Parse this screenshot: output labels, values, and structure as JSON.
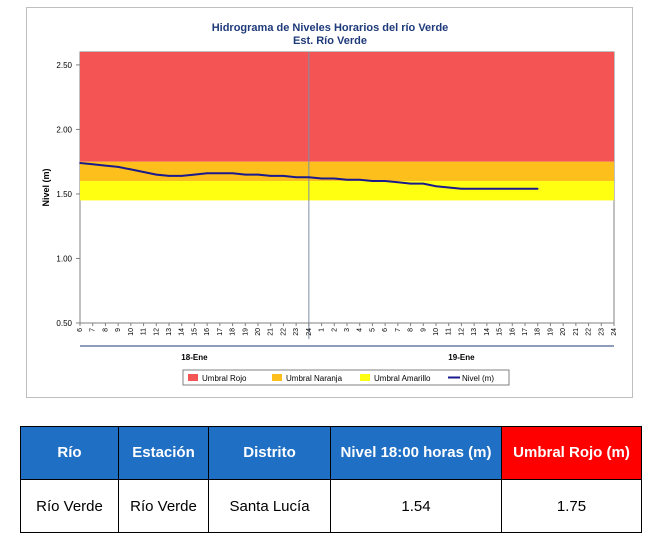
{
  "chart_data": {
    "type": "line",
    "title": "Hidrograma de Niveles Horarios del río Verde",
    "subtitle": "Est. Río Verde",
    "ylabel": "Nivel (m)",
    "xlabel": "",
    "ylim": [
      0.5,
      2.6
    ],
    "yticks": [
      "2.50",
      "2.00",
      "1.50",
      "1.00",
      "0.50"
    ],
    "ytick_values": [
      2.5,
      2.0,
      1.5,
      1.0,
      0.5
    ],
    "x_hour_labels": [
      "6",
      "7",
      "8",
      "9",
      "10",
      "11",
      "12",
      "13",
      "14",
      "15",
      "16",
      "17",
      "18",
      "19",
      "20",
      "21",
      "22",
      "23",
      "24",
      "1",
      "2",
      "3",
      "4",
      "5",
      "6",
      "7",
      "8",
      "9",
      "10",
      "11",
      "12",
      "13",
      "14",
      "15",
      "16",
      "17",
      "18",
      "19",
      "20",
      "21",
      "22",
      "23",
      "24"
    ],
    "day_labels": [
      "18-Ene",
      "19-Ene"
    ],
    "bands": [
      {
        "name": "Umbral Rojo",
        "from": 1.75,
        "to": 2.6,
        "color": "#f45454"
      },
      {
        "name": "Umbral Naranja",
        "from": 1.6,
        "to": 1.75,
        "color": "#fdbf1c"
      },
      {
        "name": "Umbral Amarillo",
        "from": 1.45,
        "to": 1.6,
        "color": "#ffff12"
      }
    ],
    "series": [
      {
        "name": "Nivel (m)",
        "color": "#1a1a8c",
        "x": [
          6,
          7,
          8,
          9,
          10,
          11,
          12,
          13,
          14,
          15,
          16,
          17,
          18,
          19,
          20,
          21,
          22,
          23,
          24,
          25,
          26,
          27,
          28,
          29,
          30,
          31,
          32,
          33,
          34,
          35,
          36,
          37,
          38,
          39,
          40,
          41,
          42
        ],
        "values": [
          1.74,
          1.73,
          1.72,
          1.71,
          1.69,
          1.67,
          1.65,
          1.64,
          1.64,
          1.65,
          1.66,
          1.66,
          1.66,
          1.65,
          1.65,
          1.64,
          1.64,
          1.63,
          1.63,
          1.62,
          1.62,
          1.61,
          1.61,
          1.6,
          1.6,
          1.59,
          1.58,
          1.58,
          1.56,
          1.55,
          1.54,
          1.54,
          1.54,
          1.54,
          1.54,
          1.54,
          1.54
        ]
      }
    ],
    "legend": {
      "position": "bottom",
      "items": [
        {
          "label": "Umbral Rojo",
          "color": "#f45454",
          "kind": "band"
        },
        {
          "label": "Umbral Naranja",
          "color": "#fdbf1c",
          "kind": "band"
        },
        {
          "label": "Umbral Amarillo",
          "color": "#ffff12",
          "kind": "band"
        },
        {
          "label": "Nivel (m)",
          "color": "#1a1a8c",
          "kind": "line"
        }
      ]
    },
    "vertical_marker_x": 24
  },
  "table": {
    "headers": [
      "Río",
      "Estación",
      "Distrito",
      "Nivel 18:00 horas (m)",
      "Umbral Rojo (m)"
    ],
    "row": [
      "Río Verde",
      "Río Verde",
      "Santa Lucía",
      "1.54",
      "1.75"
    ],
    "header_color": "#1f6fc4",
    "alert_header_color": "#ff0000"
  }
}
